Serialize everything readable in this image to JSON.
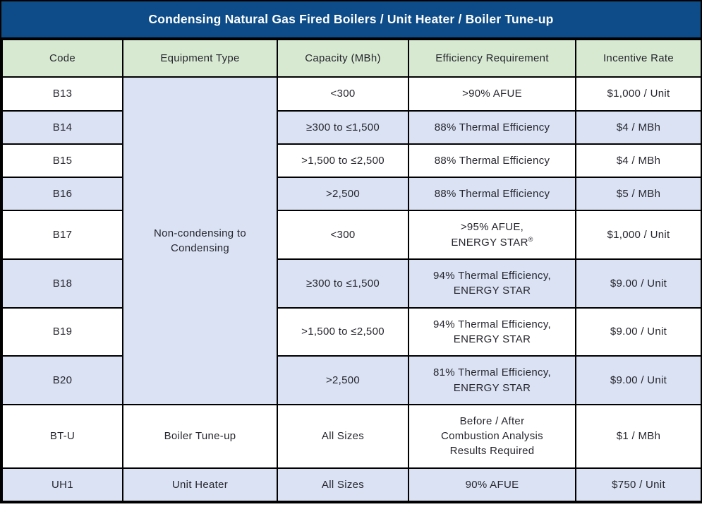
{
  "title": "Condensing Natural Gas Fired Boilers / Unit Heater / Boiler Tune-up",
  "colors": {
    "header_bg": "#0d4c88",
    "header_text": "#ffffff",
    "column_header_bg": "#d7e9d1",
    "row_alt_bg": "#dae2f3",
    "row_bg": "#ffffff",
    "border": "#000000",
    "text": "#26262e"
  },
  "table": {
    "columns": [
      "Code",
      "Equipment Type",
      "Capacity (MBh)",
      "Efficiency Requirement",
      "Incentive Rate"
    ],
    "rows": [
      {
        "code": "B13",
        "equipment": {
          "label": "Non-condensing to Condensing",
          "rowspan": 8,
          "shade": "blue"
        },
        "capacity": "<300",
        "efficiency": [
          ">90% AFUE"
        ],
        "incentive": "$1,000 / Unit",
        "shade": "white"
      },
      {
        "code": "B14",
        "capacity": "≥300 to ≤1,500",
        "efficiency": [
          "88% Thermal Efficiency"
        ],
        "incentive": "$4 / MBh",
        "shade": "blue"
      },
      {
        "code": "B15",
        "capacity": ">1,500 to ≤2,500",
        "efficiency": [
          "88% Thermal Efficiency"
        ],
        "incentive": "$4 / MBh",
        "shade": "white"
      },
      {
        "code": "B16",
        "capacity": ">2,500",
        "efficiency": [
          "88% Thermal Efficiency"
        ],
        "incentive": "$5 / MBh",
        "shade": "blue"
      },
      {
        "code": "B17",
        "capacity": "<300",
        "efficiency": [
          ">95% AFUE,",
          "ENERGY STAR®"
        ],
        "incentive": "$1,000 / Unit",
        "shade": "white"
      },
      {
        "code": "B18",
        "capacity": "≥300 to ≤1,500",
        "efficiency": [
          "94% Thermal Efficiency,",
          "ENERGY STAR"
        ],
        "incentive": "$9.00 / Unit",
        "shade": "blue"
      },
      {
        "code": "B19",
        "capacity": ">1,500 to ≤2,500",
        "efficiency": [
          "94% Thermal Efficiency,",
          "ENERGY STAR"
        ],
        "incentive": "$9.00 / Unit",
        "shade": "white"
      },
      {
        "code": "B20",
        "capacity": ">2,500",
        "efficiency": [
          "81% Thermal Efficiency,",
          "ENERGY STAR"
        ],
        "incentive": "$9.00 / Unit",
        "shade": "blue"
      },
      {
        "code": "BT-U",
        "equipment": {
          "label": "Boiler Tune-up",
          "rowspan": 1,
          "shade": "white"
        },
        "capacity": "All Sizes",
        "efficiency": [
          "Before / After",
          "Combustion Analysis",
          "Results Required"
        ],
        "incentive": "$1 / MBh",
        "shade": "white"
      },
      {
        "code": "UH1",
        "equipment": {
          "label": "Unit Heater",
          "rowspan": 1,
          "shade": "blue"
        },
        "capacity": "All Sizes",
        "efficiency": [
          "90% AFUE"
        ],
        "incentive": "$750 / Unit",
        "shade": "blue"
      }
    ]
  }
}
